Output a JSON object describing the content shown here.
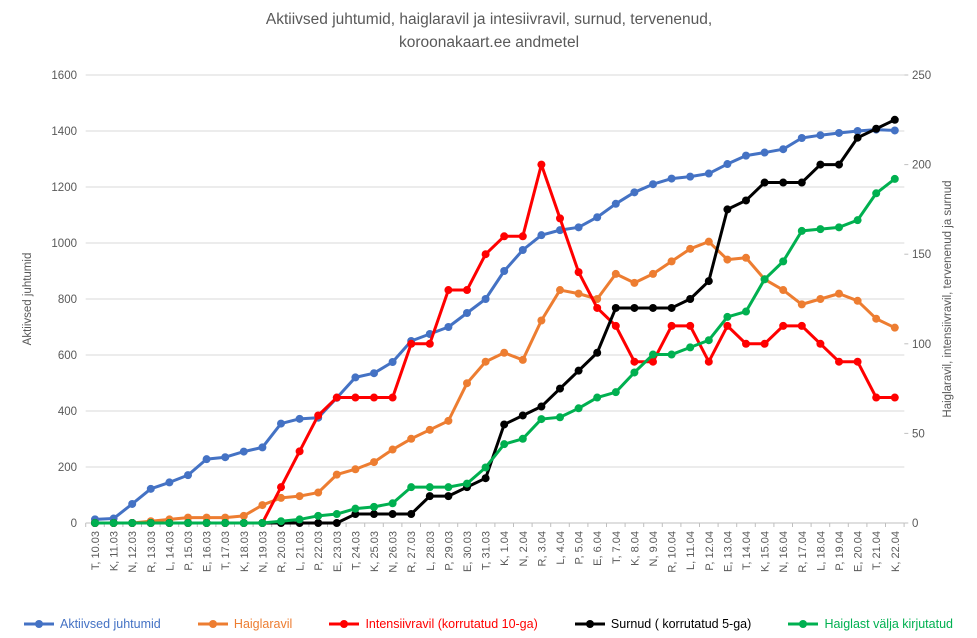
{
  "title": {
    "line1": "Aktiivsed juhtumid, haiglaravil ja intesiivravil, surnud, tervenenud,",
    "line2": "koroonakaart.ee andmetel"
  },
  "left_axis": {
    "label": "Aktiivsed juhtumid",
    "min": 0,
    "max": 1600,
    "step": 200,
    "ticks": [
      "0",
      "200",
      "400",
      "600",
      "800",
      "1000",
      "1200",
      "1400",
      "1600"
    ]
  },
  "right_axis": {
    "label": "Haiglaravil, intensiivravil, tervenenud ja surnud",
    "min": 0,
    "max": 250,
    "step": 50,
    "ticks": [
      "0",
      "50",
      "100",
      "150",
      "200",
      "250"
    ]
  },
  "chart_data": {
    "type": "line",
    "grid": true,
    "legend_position": "bottom",
    "ylim_left": [
      0,
      1600
    ],
    "ylim_right": [
      0,
      250
    ],
    "x_labels": [
      "T, 10.03",
      "K, 11.03",
      "N, 12.03",
      "R, 13.03",
      "L, 14.03",
      "P, 15.03",
      "E, 16.03",
      "T, 17.03",
      "K, 18.03",
      "N, 19.03",
      "R, 20.03",
      "L, 21.03",
      "P, 22.03",
      "E, 23.03",
      "T, 24.03",
      "K, 25.03",
      "N, 26.03",
      "R, 27.03",
      "L, 28.03",
      "P, 29.03",
      "E, 30.03",
      "T, 31.03",
      "K, 1.04",
      "N, 2.04",
      "R, 3.04",
      "L, 4.04",
      "P, 5.04",
      "E, 6.04",
      "T, 7.04",
      "K, 8.04",
      "N, 9.04",
      "R, 10.04",
      "L, 11.04",
      "P, 12.04",
      "E, 13.04",
      "T, 14.04",
      "K, 15.04",
      "N, 16.04",
      "R, 17.04",
      "L, 18.04",
      "P, 19.04",
      "E, 20.04",
      "T, 21.04",
      "K, 22.04"
    ],
    "series": [
      {
        "name": "Aktiivsed juhtumid",
        "axis": "left",
        "color": "#4472C4",
        "values": [
          13,
          16,
          68,
          122,
          145,
          171,
          228,
          235,
          255,
          270,
          355,
          372,
          376,
          447,
          520,
          535,
          575,
          650,
          675,
          700,
          750,
          800,
          900,
          975,
          1028,
          1046,
          1056,
          1092,
          1140,
          1181,
          1210,
          1230,
          1237,
          1248,
          1282,
          1312,
          1323,
          1335,
          1375,
          1385,
          1393,
          1400,
          1405,
          1402
        ]
      },
      {
        "name": "Haiglaravil",
        "axis": "right",
        "color": "#ED7D31",
        "values": [
          0,
          0,
          0,
          1,
          2,
          3,
          3,
          3,
          4,
          10,
          14,
          15,
          17,
          27,
          30,
          34,
          41,
          47,
          52,
          57,
          78,
          90,
          95,
          91,
          113,
          130,
          128,
          125,
          139,
          134,
          139,
          146,
          153,
          157,
          147,
          148,
          136,
          130,
          122,
          125,
          128,
          124,
          114,
          109
        ]
      },
      {
        "name": "Intensiivravil  (korrutatud 10-ga)",
        "axis": "right",
        "color": "#FF0000",
        "values": [
          0,
          0,
          0,
          0,
          0,
          0,
          0,
          0,
          0,
          0,
          20,
          40,
          60,
          70,
          70,
          70,
          70,
          100,
          100,
          130,
          130,
          150,
          160,
          160,
          200,
          170,
          140,
          120,
          110,
          90,
          90,
          110,
          110,
          90,
          110,
          100,
          100,
          110,
          110,
          100,
          90,
          90,
          70,
          70
        ]
      },
      {
        "name": "Surnud ( korrutatud 5-ga)",
        "axis": "right",
        "color": "#000000",
        "values": [
          0,
          0,
          0,
          0,
          0,
          0,
          0,
          0,
          0,
          0,
          0,
          0,
          0,
          0,
          5,
          5,
          5,
          5,
          15,
          15,
          20,
          25,
          55,
          60,
          65,
          75,
          85,
          95,
          120,
          120,
          120,
          120,
          125,
          135,
          175,
          180,
          190,
          190,
          190,
          200,
          200,
          215,
          220,
          225
        ]
      },
      {
        "name": "Haiglast välja kirjutatud",
        "axis": "right",
        "color": "#00B050",
        "values": [
          0,
          0,
          0,
          0,
          0,
          0,
          0,
          0,
          0,
          0,
          1,
          2,
          4,
          5,
          8,
          9,
          11,
          20,
          20,
          20,
          22,
          31,
          44,
          47,
          58,
          59,
          64,
          70,
          73,
          84,
          94,
          94,
          98,
          102,
          115,
          118,
          136,
          146,
          163,
          164,
          165,
          169,
          184,
          192
        ]
      }
    ],
    "colors": {
      "grid": "#D9D9D9",
      "axis_line": "#BFBFBF",
      "text": "#595959"
    }
  }
}
